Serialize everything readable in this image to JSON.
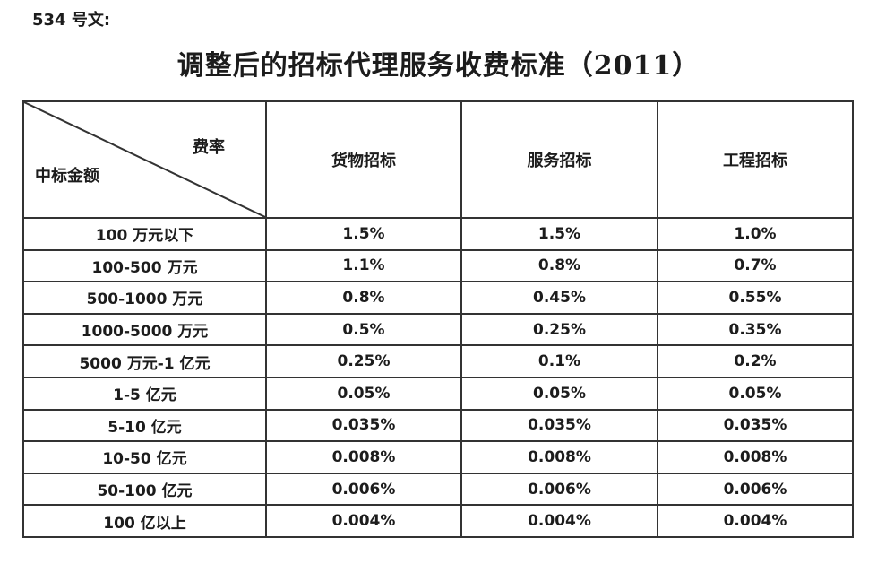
{
  "page": {
    "doc_label": "534 号文:",
    "title": "调整后的招标代理服务收费标准（2011）"
  },
  "table": {
    "corner": {
      "top_right": "费率",
      "bottom_left": "中标金额"
    },
    "columns": [
      "货物招标",
      "服务招标",
      "工程招标"
    ],
    "rows": [
      {
        "amount": "100 万元以下",
        "values": [
          "1.5%",
          "1.5%",
          "1.0%"
        ]
      },
      {
        "amount": "100-500 万元",
        "values": [
          "1.1%",
          "0.8%",
          "0.7%"
        ]
      },
      {
        "amount": "500-1000 万元",
        "values": [
          "0.8%",
          "0.45%",
          "0.55%"
        ]
      },
      {
        "amount": "1000-5000 万元",
        "values": [
          "0.5%",
          "0.25%",
          "0.35%"
        ]
      },
      {
        "amount": "5000 万元-1 亿元",
        "values": [
          "0.25%",
          "0.1%",
          "0.2%"
        ]
      },
      {
        "amount": "1-5 亿元",
        "values": [
          "0.05%",
          "0.05%",
          "0.05%"
        ]
      },
      {
        "amount": "5-10 亿元",
        "values": [
          "0.035%",
          "0.035%",
          "0.035%"
        ]
      },
      {
        "amount": "10-50 亿元",
        "values": [
          "0.008%",
          "0.008%",
          "0.008%"
        ]
      },
      {
        "amount": "50-100 亿元",
        "values": [
          "0.006%",
          "0.006%",
          "0.006%"
        ]
      },
      {
        "amount": "100 亿以上",
        "values": [
          "0.004%",
          "0.004%",
          "0.004%"
        ]
      }
    ]
  },
  "colors": {
    "background": "#ffffff",
    "text": "#1c1c1c",
    "border": "#333333"
  }
}
